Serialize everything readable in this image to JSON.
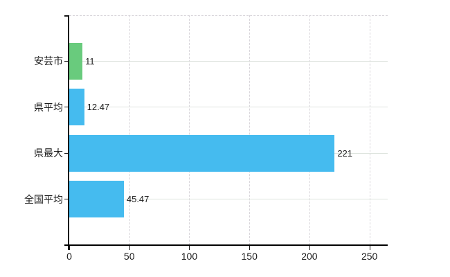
{
  "chart_data": {
    "type": "bar",
    "orientation": "horizontal",
    "title": "",
    "categories": [
      "安芸市",
      "県平均",
      "県最大",
      "全国平均"
    ],
    "values": [
      11,
      12.47,
      221,
      45.47
    ],
    "value_labels": [
      "11",
      "12.47",
      "221",
      "45.47"
    ],
    "bar_colors": [
      "#69cb7d",
      "#45bbef",
      "#45bbef",
      "#45bbef"
    ],
    "x_tick_labels": [
      "0",
      "50",
      "100",
      "150",
      "200",
      "250"
    ],
    "x_tick_values": [
      0,
      50,
      100,
      150,
      200,
      250
    ],
    "xlim": [
      0,
      265.2
    ],
    "grid": true,
    "legend": "none",
    "colors": {
      "background": "#ffffff",
      "axis": "#000000",
      "grid_horizontal": "#dde3dd",
      "grid_vertical": "#d8d5da",
      "text": "#1a1a1a"
    }
  }
}
